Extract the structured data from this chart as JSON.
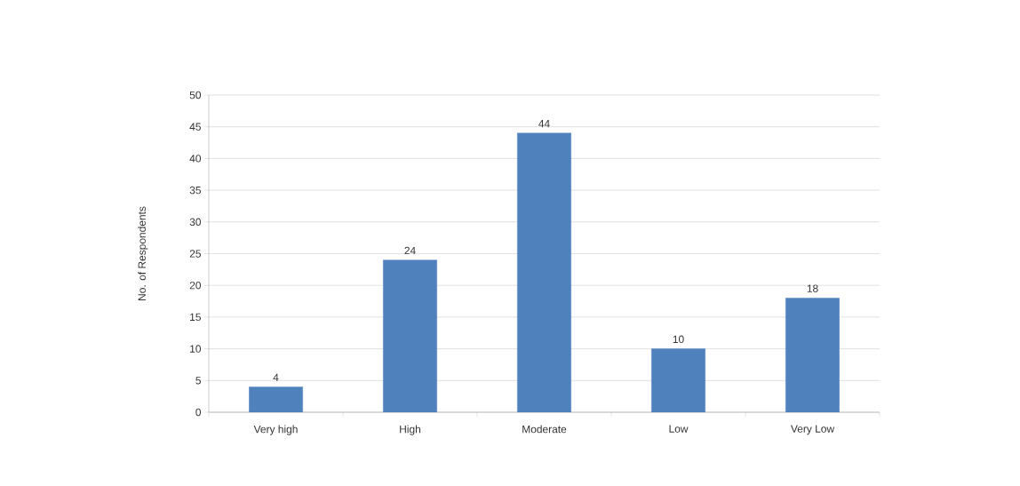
{
  "chart_data": {
    "type": "bar",
    "ylabel": "No. of Respondents",
    "categories": [
      "Very high",
      "High",
      "Moderate",
      "Low",
      "Very Low"
    ],
    "values": [
      4,
      24,
      44,
      10,
      18
    ],
    "color": "#4f81bd",
    "ylim": [
      0,
      50
    ],
    "yticks": [
      0,
      5,
      10,
      15,
      20,
      25,
      30,
      35,
      40,
      45,
      50
    ],
    "grid": "y",
    "data_labels": true
  }
}
